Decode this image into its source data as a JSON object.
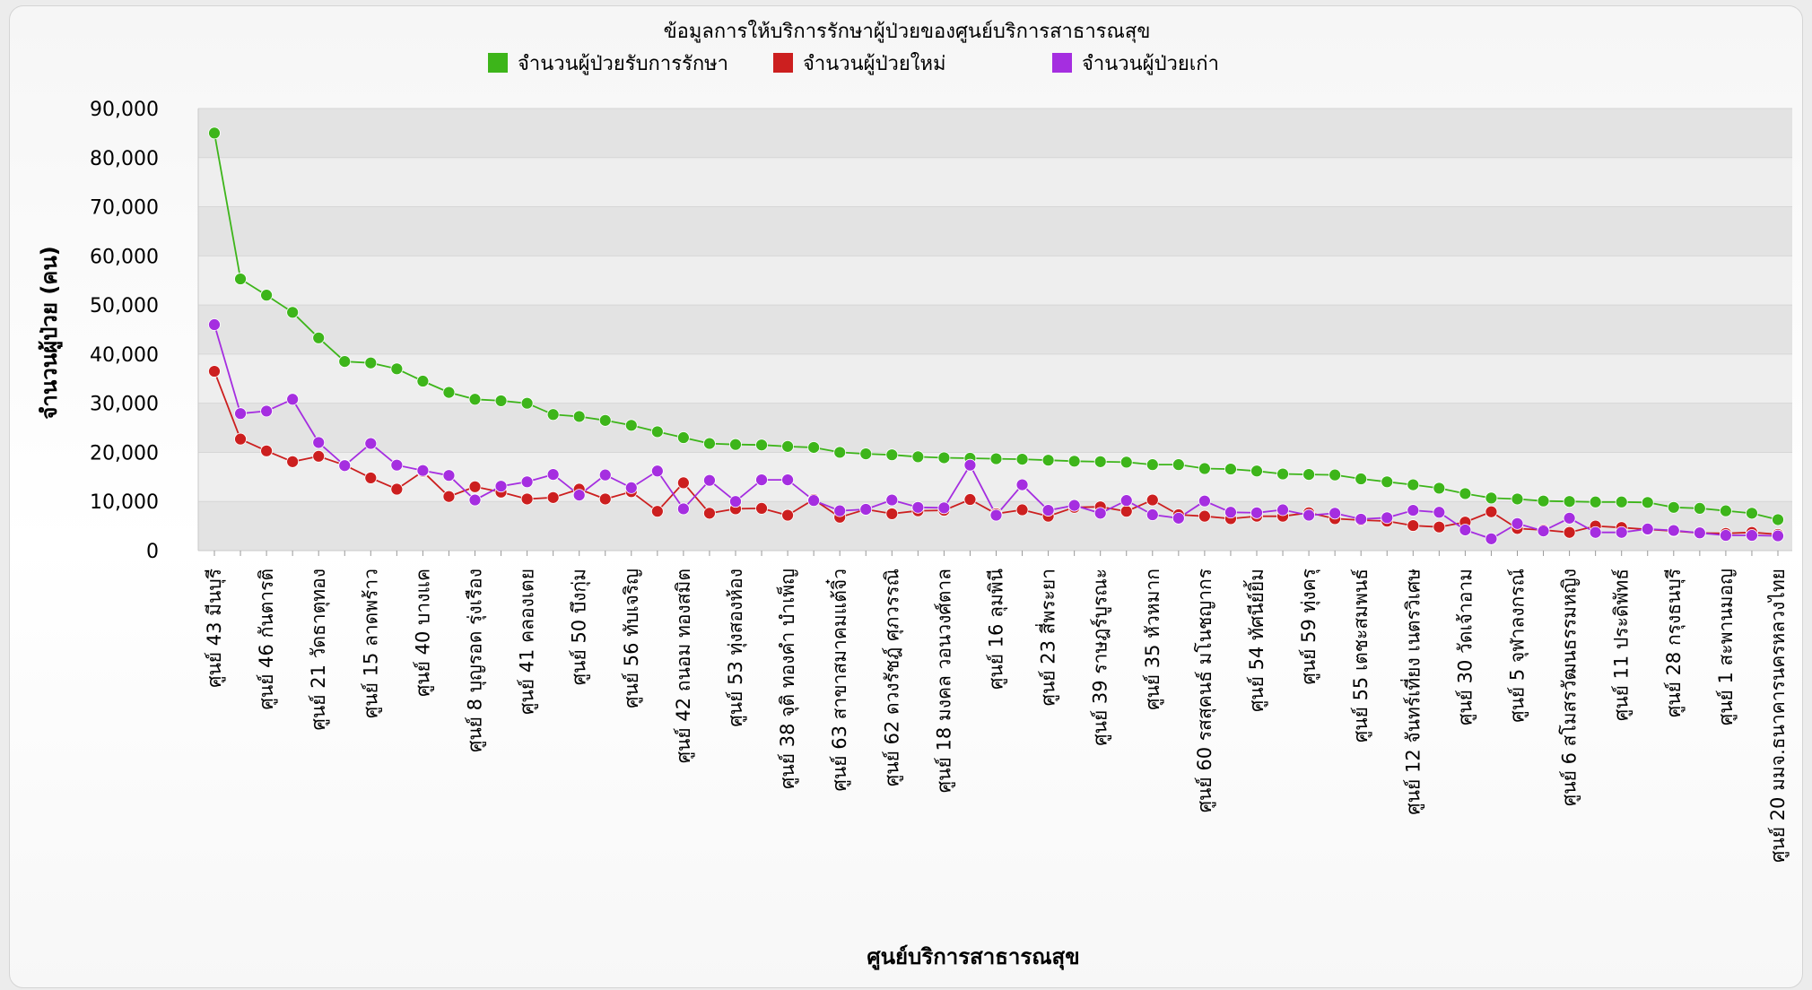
{
  "chart_data": {
    "type": "line",
    "title": "ข้อมูลการให้บริการรักษาผู้ป่วยของศูนย์บริการสาธารณสุข",
    "xlabel": "ศูนย์บริการสาธารณสุข",
    "ylabel": "จำนวนผู้ป่วย (คน)",
    "ylim": [
      0,
      90000
    ],
    "yticks": [
      "90,000",
      "80,000",
      "70,000",
      "60,000",
      "50,000",
      "40,000",
      "30,000",
      "20,000",
      "10,000",
      "0"
    ],
    "legend_position": "top-center",
    "grid": true,
    "categories": [
      "ศูนย์ 43 มีนบุรี",
      "",
      "ศูนย์ 46 กันตารติ",
      "",
      "ศูนย์ 21 วัดธาตุทอง",
      "",
      "ศูนย์ 15 ลาดพร้าว",
      "",
      "ศูนย์ 40 บางแค",
      "",
      "ศูนย์ 8 บุญรอด รุ่งเรือง",
      "",
      "ศูนย์ 41 คลองเตย",
      "",
      "ศูนย์ 50 บึงกุ่ม",
      "",
      "ศูนย์ 56 ทับเจริญ",
      "",
      "ศูนย์ 42 ถนอม ทองสมิต",
      "",
      "ศูนย์ 53 ทุ่งสองห้อง",
      "",
      "ศูนย์ 38 จุติ ทองคำ บำเพ็ญ",
      "",
      "ศูนย์ 63 สาขาสมาคมแต้จิ๋ว",
      "",
      "ศูนย์ 62 ดวงรัชฎ์ ศุภวรรณิ",
      "",
      "ศูนย์ 18 มงคล วอนวงศ์ตาล",
      "",
      "ศูนย์ 16 ลุมพินี",
      "",
      "ศูนย์ 23 สี่พระยา",
      "",
      "ศูนย์ 39 ราษฎร์บูรณะ",
      "",
      "ศูนย์ 35 หัวหมาก",
      "",
      "ศูนย์ 60 รสสุคนธ์ มโนชญากร",
      "",
      "ศูนย์ 54 ทัศนีย์ยิ้ม",
      "",
      "ศูนย์ 59 ทุ่งครุ",
      "",
      "ศูนย์ 55 เตชะสมพนธ์",
      "",
      "ศูนย์ 12 จันทร์เที่ยง เนตรวิเศษ",
      "",
      "ศูนย์ 30 วัดเจ้าอาม",
      "",
      "ศูนย์ 5 จุฬาลงกรณ์",
      "",
      "ศูนย์ 6 สโมสรวัฒนธรรมหญิง",
      "",
      "ศูนย์ 11 ประดิพัทธ์",
      "",
      "ศูนย์ 28 กรุงธนบุรี",
      "",
      "ศูนย์ 1 สะพานมอญ",
      "",
      "ศูนย์ 20 มมจ.ธนาคารนครหลวงไทย"
    ],
    "series": [
      {
        "name": "จำนวนผู้ป่วยรับการรักษา",
        "color": "#3db51a",
        "values": [
          85000,
          55300,
          52000,
          48500,
          43300,
          38500,
          38200,
          37000,
          34500,
          32200,
          30800,
          30500,
          30000,
          27700,
          27300,
          26500,
          25500,
          24200,
          23000,
          21800,
          21600,
          21500,
          21200,
          21000,
          20000,
          19700,
          19500,
          19100,
          18900,
          18800,
          18700,
          18600,
          18400,
          18200,
          18100,
          18000,
          17500,
          17500,
          16700,
          16600,
          16200,
          15600,
          15500,
          15400,
          14600,
          14000,
          13400,
          12700,
          11600,
          10700,
          10500,
          10100,
          10000,
          9900,
          9900,
          9800,
          8800,
          8600,
          8100,
          7600,
          6300
        ]
      },
      {
        "name": "จำนวนผู้ป่วยใหม่",
        "color": "#cc1f1f",
        "values": [
          36500,
          22700,
          20300,
          18100,
          19200,
          17400,
          14800,
          12500,
          16100,
          11000,
          13000,
          11900,
          10500,
          10800,
          12500,
          10500,
          12000,
          8000,
          13800,
          7600,
          8500,
          8600,
          7200,
          10400,
          6800,
          8400,
          7500,
          8100,
          8200,
          10400,
          7500,
          8300,
          7000,
          8800,
          8900,
          8000,
          10300,
          7300,
          7000,
          6500,
          7000,
          7000,
          7700,
          6500,
          6200,
          6000,
          5100,
          4800,
          5800,
          7900,
          4500,
          4200,
          3700,
          5000,
          4700,
          4300,
          4000,
          3600,
          3500,
          3700,
          3300
        ]
      },
      {
        "name": "จำนวนผู้ป่วยเก่า",
        "color": "#a52ee0",
        "values": [
          46000,
          27900,
          28400,
          30800,
          22000,
          17300,
          21800,
          17400,
          16300,
          15300,
          10300,
          13100,
          14000,
          15500,
          11300,
          15400,
          12800,
          16200,
          8500,
          14300,
          10000,
          14400,
          14400,
          10200,
          8100,
          8400,
          10300,
          8800,
          8700,
          17400,
          7200,
          13400,
          8200,
          9200,
          7600,
          10200,
          7300,
          6600,
          10100,
          7800,
          7700,
          8300,
          7200,
          7600,
          6400,
          6700,
          8200,
          7800,
          4200,
          2400,
          5500,
          4000,
          6600,
          3700,
          3700,
          4400,
          4100,
          3600,
          3100,
          3100,
          3000
        ]
      }
    ]
  }
}
